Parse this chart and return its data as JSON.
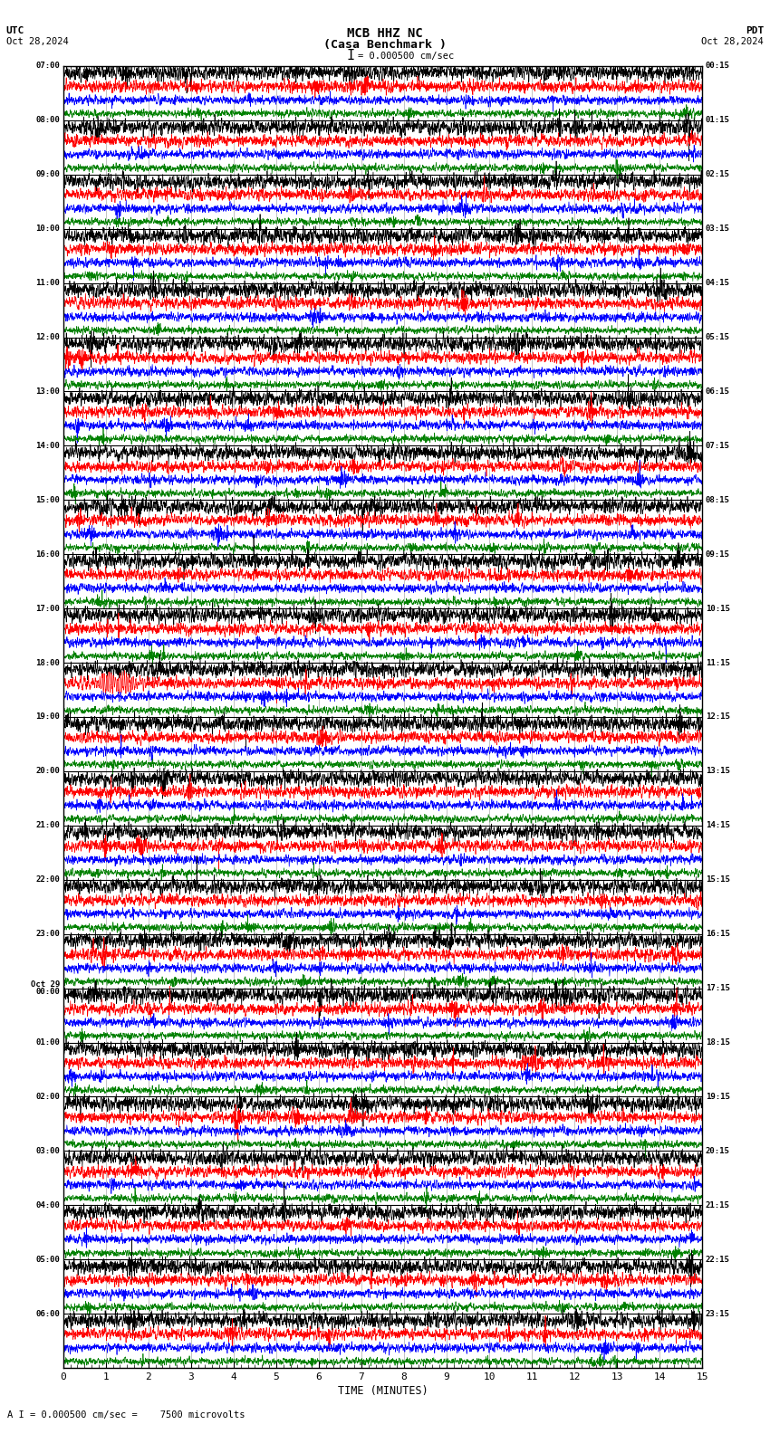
{
  "title_line1": "MCB HHZ NC",
  "title_line2": "(Casa Benchmark )",
  "scale_label": "I = 0.000500 cm/sec",
  "utc_label": "UTC",
  "pdt_label": "PDT",
  "date_left": "Oct 28,2024",
  "date_right": "Oct 28,2024",
  "xlabel": "TIME (MINUTES)",
  "bottom_label": "A I = 0.000500 cm/sec =    7500 microvolts",
  "xmin": 0,
  "xmax": 15,
  "n_rows": 24,
  "traces_per_row": 4,
  "trace_colors": [
    "black",
    "red",
    "blue",
    "green"
  ],
  "noise_amp": [
    0.38,
    0.28,
    0.22,
    0.18
  ],
  "bg_color": "white",
  "grid_color": "#888888",
  "left_times_utc": [
    "07:00",
    "08:00",
    "09:00",
    "10:00",
    "11:00",
    "12:00",
    "13:00",
    "14:00",
    "15:00",
    "16:00",
    "17:00",
    "18:00",
    "19:00",
    "20:00",
    "21:00",
    "22:00",
    "23:00",
    "Oct 29\n00:00",
    "01:00",
    "02:00",
    "03:00",
    "04:00",
    "05:00",
    "06:00"
  ],
  "right_times_pdt": [
    "00:15",
    "01:15",
    "02:15",
    "03:15",
    "04:15",
    "05:15",
    "06:15",
    "07:15",
    "08:15",
    "09:15",
    "10:15",
    "11:15",
    "12:15",
    "13:15",
    "14:15",
    "15:15",
    "16:15",
    "17:15",
    "18:15",
    "19:15",
    "20:15",
    "21:15",
    "22:15",
    "23:15"
  ],
  "eq_row": 11,
  "eq_trace": 1,
  "figsize": [
    8.5,
    15.84
  ],
  "dpi": 100
}
